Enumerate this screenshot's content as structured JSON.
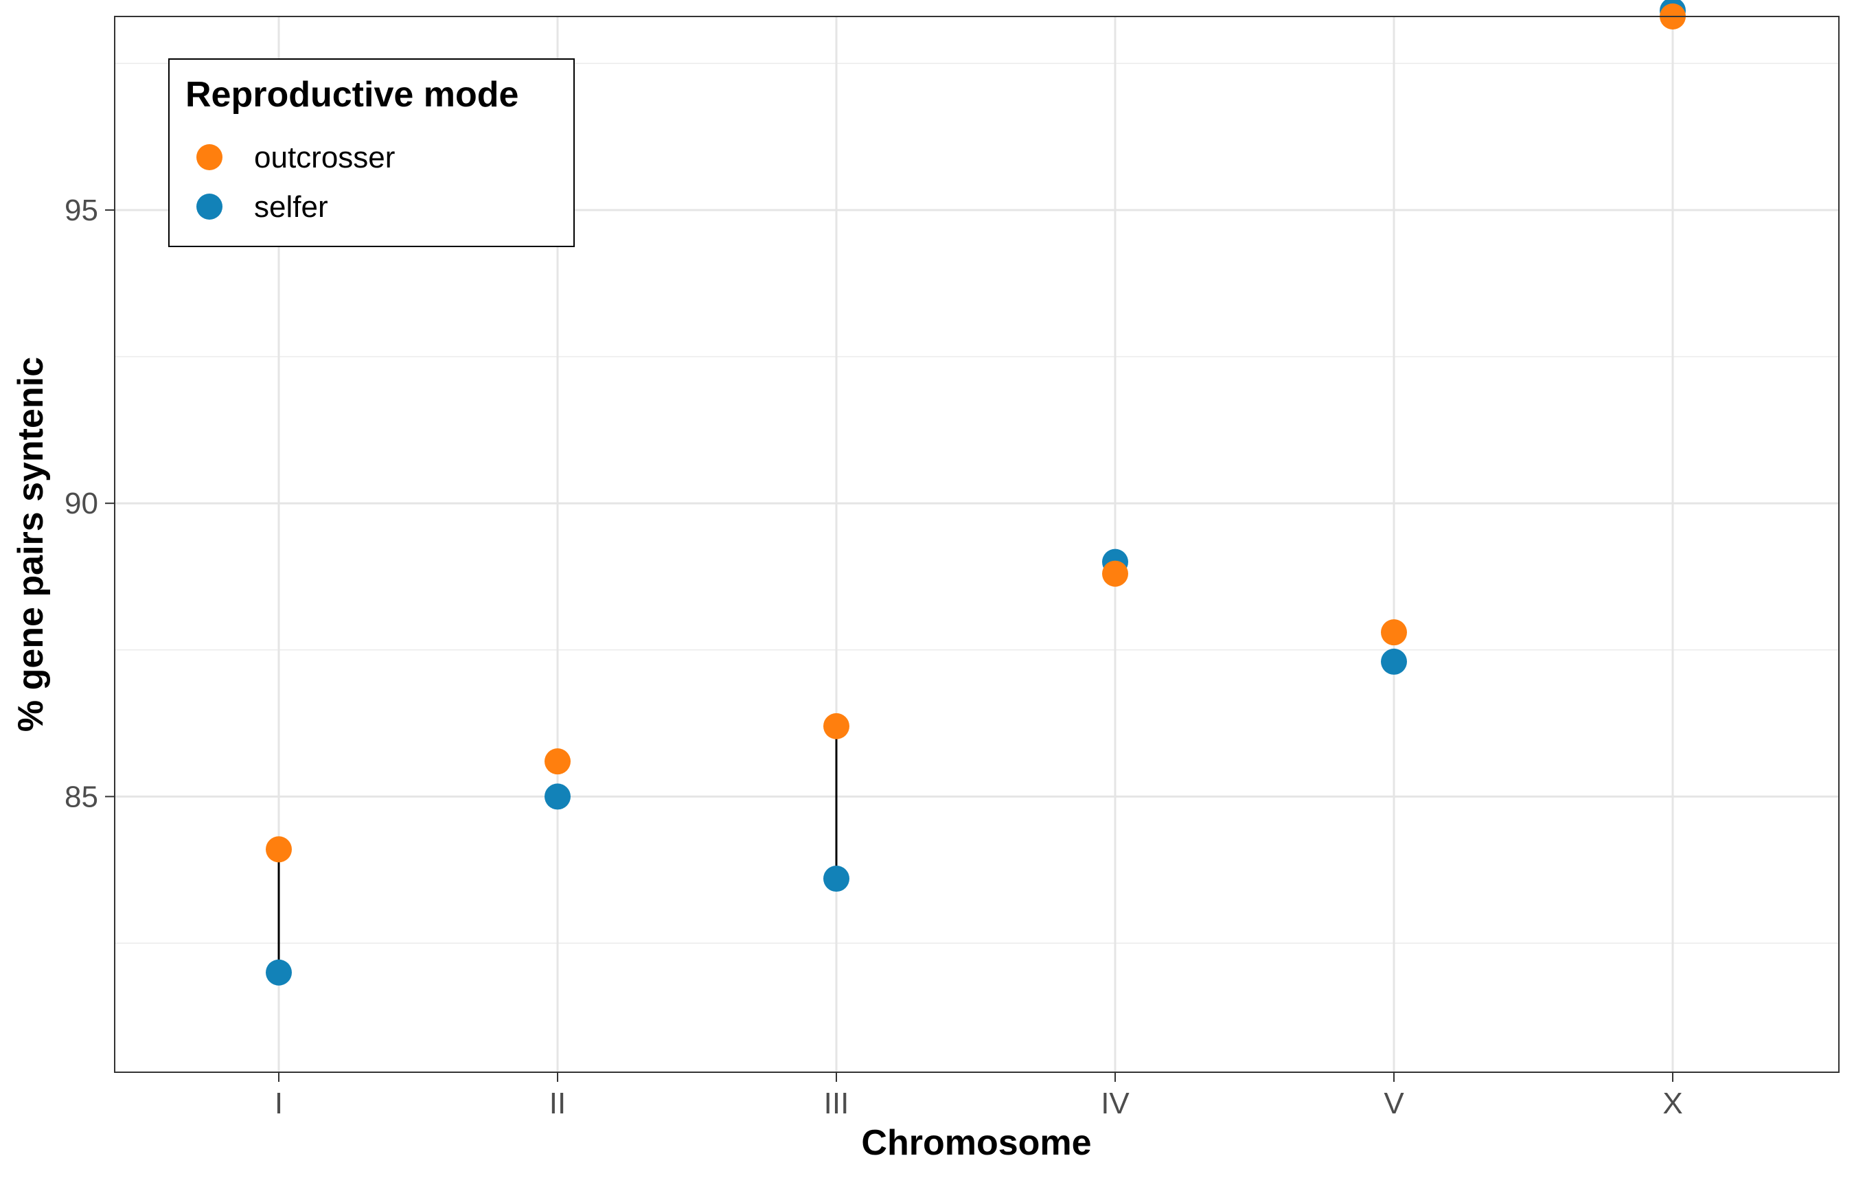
{
  "chart_data": {
    "type": "scatter",
    "xlabel": "Chromosome",
    "ylabel": "% gene pairs syntenic",
    "categories": [
      "I",
      "II",
      "III",
      "IV",
      "V",
      "X"
    ],
    "y_ticks": [
      85,
      90,
      95
    ],
    "y_minor_ticks": [
      82.5,
      87.5,
      92.5,
      97.5
    ],
    "ylim": [
      80.3,
      98.3
    ],
    "grid": true,
    "legend": {
      "title": "Reproductive mode",
      "position": "top-left"
    },
    "series": [
      {
        "name": "outcrosser",
        "color": "#FF7F0E",
        "values": [
          84.1,
          85.6,
          86.2,
          88.8,
          87.8,
          98.3
        ]
      },
      {
        "name": "selfer",
        "color": "#1282B8",
        "values": [
          82.0,
          85.0,
          83.6,
          89.0,
          87.3,
          98.4
        ]
      }
    ],
    "connectors": [
      {
        "category": "I",
        "from": 84.1,
        "to": 82.0
      },
      {
        "category": "III",
        "from": 86.2,
        "to": 83.6
      }
    ]
  }
}
